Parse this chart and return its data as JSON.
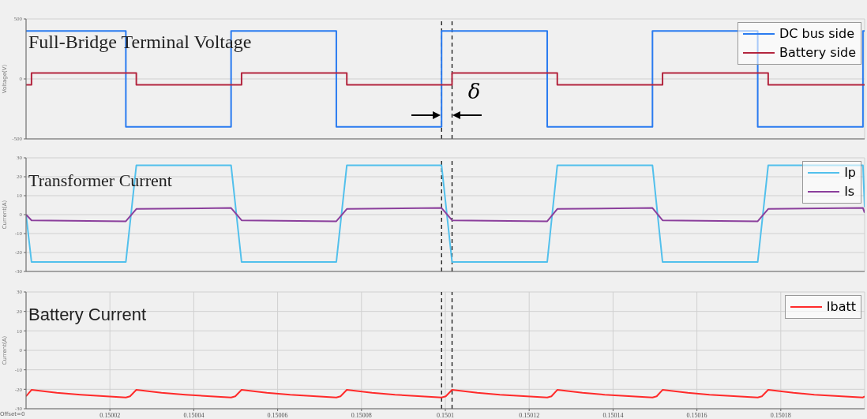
{
  "chart_data": [
    {
      "type": "step",
      "title": "Full-Bridge Terminal Voltage",
      "ylabel": "Voltage(V)",
      "xlim": [
        0.15,
        0.1502
      ],
      "xticks": [
        0.15002,
        0.15004,
        0.15006,
        0.15008,
        0.1501,
        0.15012,
        0.15014,
        0.15016,
        0.15018
      ],
      "ylim": [
        -500,
        500
      ],
      "yticks": [
        -500,
        0,
        500
      ],
      "tick_labels": "y",
      "grid": true,
      "legend": "top right",
      "series": [
        {
          "name": "DC bus side",
          "color": "#2a7bf0",
          "x": [
            0.15,
            0.1500238,
            0.1500489,
            0.150074,
            0.1500991,
            0.1501243,
            0.1501494,
            0.1501745,
            0.1501996,
            0.1502
          ],
          "values": [
            400,
            -400,
            400,
            -400,
            400,
            -400,
            400,
            -400,
            400,
            400
          ]
        },
        {
          "name": "Battery side",
          "color": "#b3263f",
          "x": [
            0.15,
            0.1500013,
            0.1500263,
            0.1500514,
            0.1500765,
            0.1501016,
            0.1501267,
            0.1501518,
            0.150177,
            0.1502
          ],
          "values": [
            -50,
            50,
            -50,
            50,
            -50,
            50,
            -50,
            50,
            -50,
            -50
          ]
        }
      ],
      "ref_lines": [
        {
          "axis": "x",
          "value": 0.1500991,
          "color": "#000000",
          "line_style": "dashed"
        },
        {
          "axis": "x",
          "value": 0.1501016,
          "color": "#000000",
          "line_style": "dashed"
        }
      ],
      "annotations": [
        "δ"
      ]
    },
    {
      "type": "line",
      "title": "Transformer Current",
      "ylabel": "Current(A)",
      "xlim": [
        0.15,
        0.1502
      ],
      "xticks": [
        0.15002,
        0.15004,
        0.15006,
        0.15008,
        0.1501,
        0.15012,
        0.15014,
        0.15016,
        0.15018
      ],
      "ylim": [
        -30,
        30
      ],
      "yticks": [
        -30,
        -20,
        -10,
        0,
        10,
        20,
        30
      ],
      "tick_labels": "y",
      "grid": true,
      "legend": "top right",
      "series": [
        {
          "name": "Ip",
          "color": "#52c0ec",
          "x": [
            0.15,
            0.1500013,
            0.1500238,
            0.1500263,
            0.1500489,
            0.1500514,
            0.150074,
            0.1500765,
            0.1500991,
            0.1501016,
            0.1501243,
            0.1501267,
            0.1501494,
            0.1501518,
            0.1501745,
            0.150177,
            0.1501996,
            0.1502
          ],
          "values": [
            0,
            -25,
            -25,
            26,
            26,
            -25,
            -25,
            26,
            26,
            -25,
            -25,
            26,
            26,
            -25,
            -25,
            26,
            26,
            4
          ]
        },
        {
          "name": "Is",
          "color": "#8b3f9c",
          "x": [
            0.15,
            0.1500013,
            0.1500238,
            0.1500263,
            0.1500489,
            0.1500514,
            0.150074,
            0.1500765,
            0.1500991,
            0.1501016,
            0.1501243,
            0.1501267,
            0.1501494,
            0.1501518,
            0.1501745,
            0.150177,
            0.1501996,
            0.1502
          ],
          "values": [
            0,
            -3,
            -3.5,
            3,
            3.5,
            -3,
            -3.5,
            3,
            3.5,
            -3,
            -3.5,
            3,
            3.5,
            -3,
            -3.5,
            3,
            3.5,
            1
          ]
        }
      ],
      "ref_lines": [
        {
          "axis": "x",
          "value": 0.1500991,
          "color": "#000000",
          "line_style": "dashed"
        },
        {
          "axis": "x",
          "value": 0.1501016,
          "color": "#000000",
          "line_style": "dashed"
        }
      ]
    },
    {
      "type": "line",
      "title": "Battery Current",
      "ylabel": "Current(A)",
      "xlim": [
        0.15,
        0.1502
      ],
      "xticks": [
        0.15002,
        0.15004,
        0.15006,
        0.15008,
        0.1501,
        0.15012,
        0.15014,
        0.15016,
        0.15018
      ],
      "ylim": [
        -30,
        30
      ],
      "yticks": [
        -30,
        -20,
        -10,
        0,
        10,
        20,
        30
      ],
      "grid": true,
      "legend": "top right",
      "series": [
        {
          "name": "Ibatt",
          "color": "#ff2a2a",
          "x": [
            0.15,
            0.1500013,
            0.1500073,
            0.150013,
            0.1500238,
            0.1500248,
            0.1500263,
            0.1500323,
            0.150038,
            0.1500489,
            0.1500499,
            0.1500514,
            0.1500574,
            0.150063,
            0.150074,
            0.150075,
            0.1500765,
            0.1500825,
            0.150088,
            0.1500991,
            0.1501001,
            0.1501016,
            0.1501076,
            0.150113,
            0.1501243,
            0.1501253,
            0.1501267,
            0.1501327,
            0.150138,
            0.1501494,
            0.1501504,
            0.1501518,
            0.1501578,
            0.150163,
            0.1501745,
            0.1501755,
            0.150177,
            0.150183,
            0.150188,
            0.1501996,
            0.1502
          ],
          "values": [
            -23.6,
            -20.3,
            -21.8,
            -22.8,
            -24.2,
            -23.6,
            -20.3,
            -21.8,
            -22.8,
            -24.2,
            -23.6,
            -20.3,
            -21.8,
            -22.8,
            -24.2,
            -23.6,
            -20.3,
            -21.8,
            -22.8,
            -24.2,
            -23.6,
            -20.3,
            -21.8,
            -22.8,
            -24.2,
            -23.6,
            -20.3,
            -21.8,
            -22.8,
            -24.2,
            -23.6,
            -20.3,
            -21.8,
            -22.8,
            -24.2,
            -23.6,
            -20.3,
            -21.8,
            -22.8,
            -24.2,
            -23.6
          ]
        }
      ],
      "ref_lines": [
        {
          "axis": "x",
          "value": 0.1500991,
          "color": "#000000",
          "line_style": "dashed"
        },
        {
          "axis": "x",
          "value": 0.1501016,
          "color": "#000000",
          "line_style": "dashed"
        }
      ],
      "annotations": [
        "Offset=0"
      ]
    }
  ]
}
